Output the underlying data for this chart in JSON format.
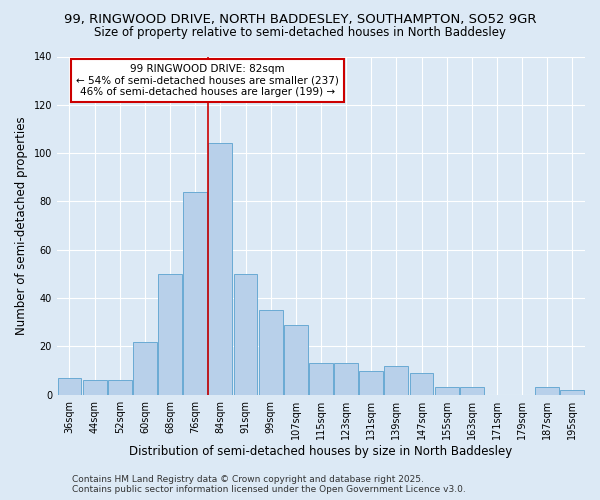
{
  "title1": "99, RINGWOOD DRIVE, NORTH BADDESLEY, SOUTHAMPTON, SO52 9GR",
  "title2": "Size of property relative to semi-detached houses in North Baddesley",
  "xlabel": "Distribution of semi-detached houses by size in North Baddesley",
  "ylabel": "Number of semi-detached properties",
  "categories": [
    "36sqm",
    "44sqm",
    "52sqm",
    "60sqm",
    "68sqm",
    "76sqm",
    "84sqm",
    "91sqm",
    "99sqm",
    "107sqm",
    "115sqm",
    "123sqm",
    "131sqm",
    "139sqm",
    "147sqm",
    "155sqm",
    "163sqm",
    "171sqm",
    "179sqm",
    "187sqm",
    "195sqm"
  ],
  "values": [
    7,
    6,
    6,
    22,
    50,
    84,
    104,
    50,
    35,
    29,
    13,
    13,
    10,
    12,
    9,
    3,
    3,
    0,
    0,
    3,
    2
  ],
  "bar_color": "#b8d0ea",
  "bar_edge_color": "#6aaad4",
  "property_line_color": "#cc0000",
  "annotation_title": "99 RINGWOOD DRIVE: 82sqm",
  "annotation_line1": "← 54% of semi-detached houses are smaller (237)",
  "annotation_line2": "46% of semi-detached houses are larger (199) →",
  "annotation_box_color": "#ffffff",
  "annotation_box_edge": "#cc0000",
  "ylim": [
    0,
    140
  ],
  "yticks": [
    0,
    20,
    40,
    60,
    80,
    100,
    120,
    140
  ],
  "background_color": "#dce9f5",
  "plot_bg_color": "#dce9f5",
  "footer1": "Contains HM Land Registry data © Crown copyright and database right 2025.",
  "footer2": "Contains public sector information licensed under the Open Government Licence v3.0.",
  "title_fontsize": 9.5,
  "subtitle_fontsize": 8.5,
  "axis_label_fontsize": 8.5,
  "tick_fontsize": 7,
  "annotation_fontsize": 7.5,
  "footer_fontsize": 6.5
}
